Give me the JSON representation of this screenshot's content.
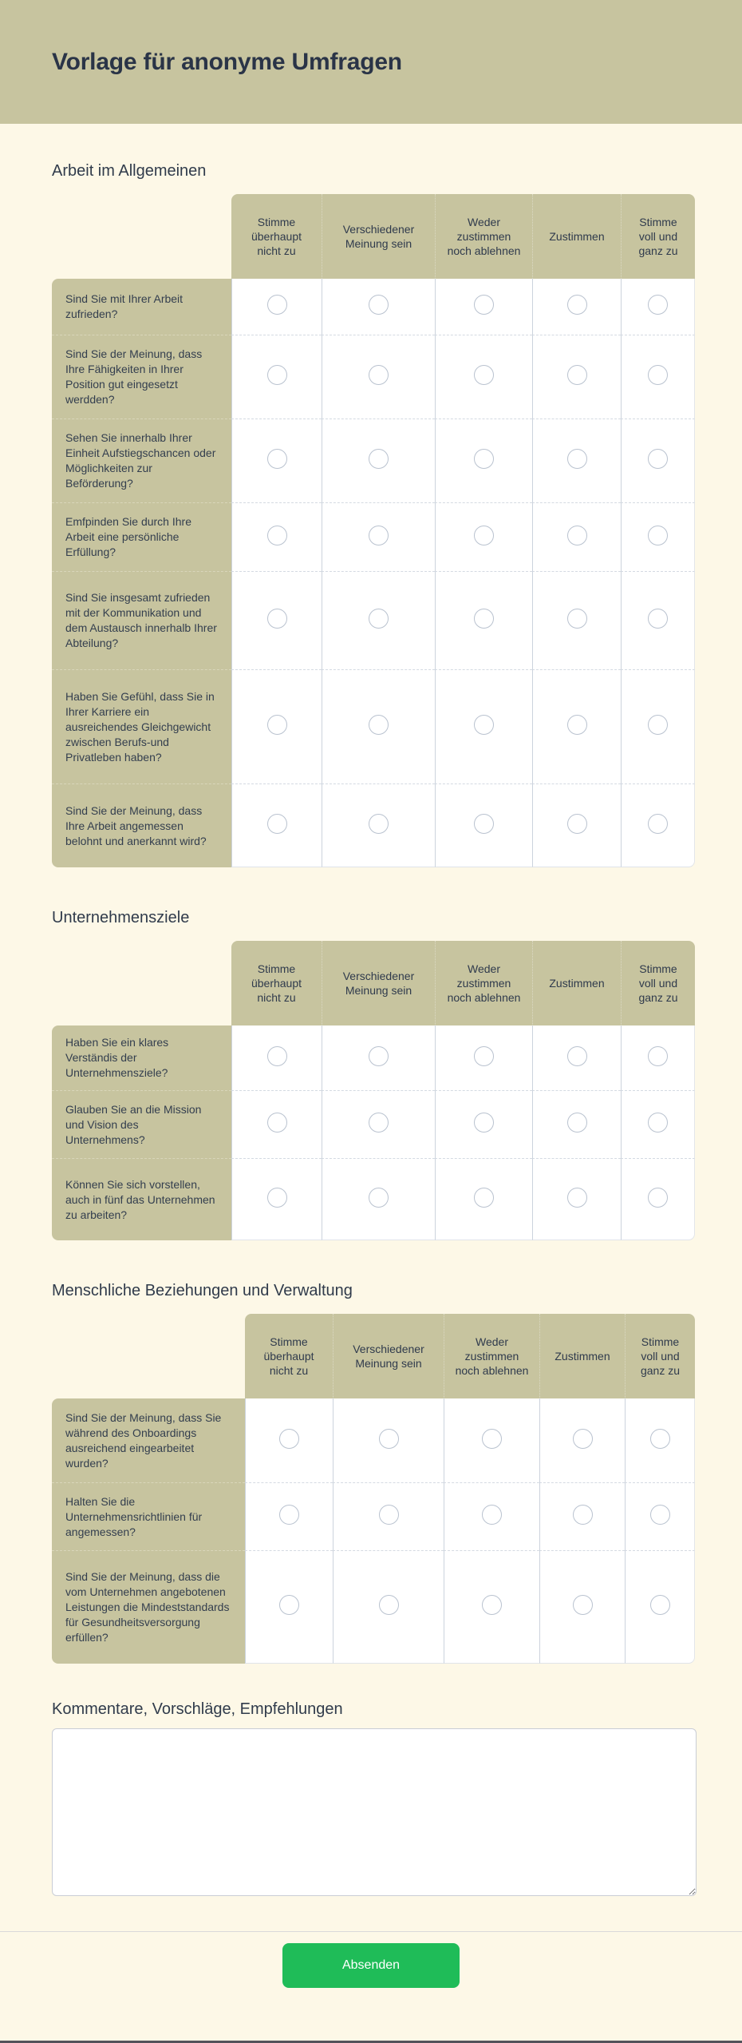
{
  "theme": {
    "header_olive": "#c7c49f",
    "page_cream": "#fdf8e7",
    "ink_dark": "#2a3447",
    "button_green": "#1fbc58"
  },
  "page": {
    "title": "Vorlage für anonyme Umfragen",
    "submit_label": "Absenden"
  },
  "likert_scale": [
    "Stimme überhaupt nicht zu",
    "Verschiedener Meinung sein",
    "Weder zustimmen noch ablehnen",
    "Zustimmen",
    "Stimme voll und ganz zu"
  ],
  "sections": [
    {
      "title": "Arbeit im Allgemeinen",
      "questions": [
        "Sind Sie mit Ihrer Arbeit zufrieden?",
        "Sind Sie der Meinung, dass Ihre Fähigkeiten in Ihrer Position gut eingesetzt werdden?",
        "Sehen Sie innerhalb Ihrer Einheit Aufstiegschancen oder Möglichkeiten zur Beförderung?",
        "Emfpinden Sie durch Ihre Arbeit eine persönliche Erfüllung?",
        "Sind Sie insgesamt zufrieden mit der Kommunikation und dem Austausch innerhalb Ihrer Abteilung?",
        "Haben Sie Gefühl, dass Sie in Ihrer Karriere ein ausreichendes Gleichgewicht zwischen Berufs-und Privatleben haben?",
        "Sind Sie der Meinung, dass Ihre Arbeit angemessen belohnt und anerkannt wird?"
      ]
    },
    {
      "title": "Unternehmensziele",
      "questions": [
        "Haben Sie ein klares Verständis der Unternehmensziele?",
        "Glauben Sie an die Mission und Vision des Unternehmens?",
        "Können Sie sich vorstellen, auch in fünf das Unternehmen zu arbeiten?"
      ]
    },
    {
      "title": "Menschliche Beziehungen und Verwaltung",
      "questions": [
        "Sind Sie der Meinung, dass Sie während des Onboardings ausreichend eingearbeitet wurden?",
        "Halten Sie die Unternehmensrichtlinien für angemessen?",
        "Sind Sie der Meinung, dass die vom Unternehmen angebotenen Leistungen die Mindeststandards für Gesundheitsversorgung erfüllen?"
      ]
    }
  ],
  "comments": {
    "title": "Kommentare, Vorschläge, Empfehlungen",
    "value": "",
    "placeholder": ""
  }
}
